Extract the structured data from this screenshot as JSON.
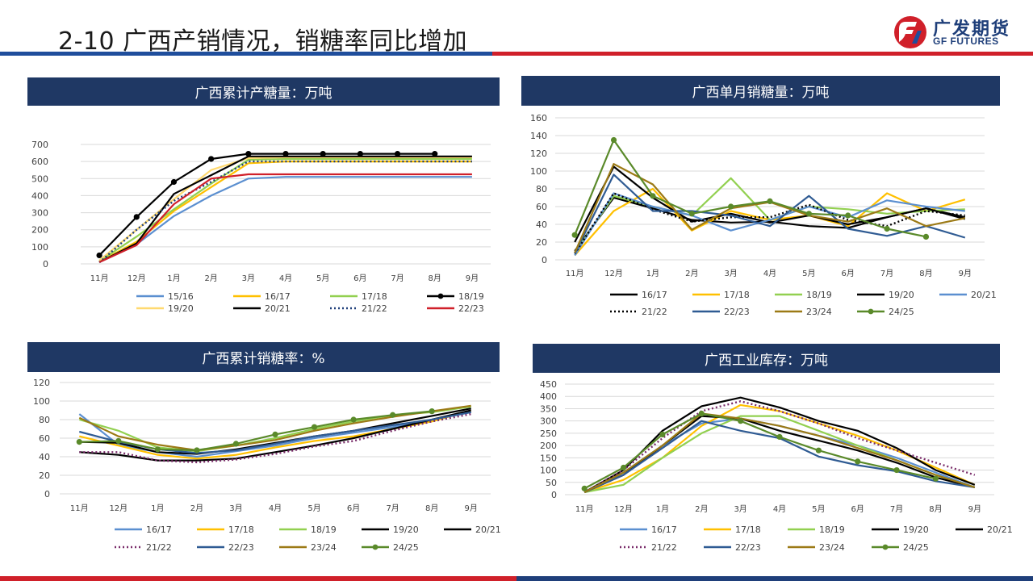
{
  "page": {
    "title": "2-10 广西产销情况，销糖率同比增加",
    "logo_cn": "广发期货",
    "logo_en": "GF FUTURES",
    "colors": {
      "blue": "#1f4e9c",
      "red": "#d0202a",
      "header": "#1f3864"
    }
  },
  "panels": [
    {
      "title": "广西累计产糖量：万吨"
    },
    {
      "title": "广西单月销糖量：万吨"
    },
    {
      "title": "广西累计销糖率：%"
    },
    {
      "title": "广西工业库存：万吨"
    }
  ],
  "chart_data": [
    {
      "type": "line",
      "title": "广西累计产糖量：万吨",
      "categories": [
        "11月",
        "12月",
        "1月",
        "2月",
        "3月",
        "4月",
        "5月",
        "6月",
        "7月",
        "8月",
        "9月"
      ],
      "ylim": [
        0,
        700
      ],
      "yticks": [
        0,
        100,
        200,
        300,
        400,
        500,
        600,
        700
      ],
      "series": [
        {
          "name": "15/16",
          "color": "#5b8fd0",
          "style": "solid",
          "values": [
            10,
            115,
            280,
            400,
            500,
            510,
            510,
            510,
            510,
            510,
            510
          ]
        },
        {
          "name": "16/17",
          "color": "#ffc000",
          "style": "solid",
          "values": [
            12,
            130,
            310,
            450,
            590,
            600,
            600,
            600,
            600,
            600,
            600
          ]
        },
        {
          "name": "17/18",
          "color": "#92d050",
          "style": "solid",
          "values": [
            15,
            160,
            320,
            470,
            610,
            615,
            615,
            615,
            615,
            615,
            615
          ]
        },
        {
          "name": "18/19",
          "color": "#000000",
          "style": "marker",
          "values": [
            50,
            275,
            480,
            615,
            645,
            645,
            645,
            645,
            645,
            645,
            null
          ]
        },
        {
          "name": "19/20",
          "color": "#ffd970",
          "style": "solid",
          "values": [
            20,
            200,
            380,
            550,
            620,
            625,
            625,
            625,
            625,
            625,
            625
          ]
        },
        {
          "name": "20/21",
          "color": "#000000",
          "style": "solid",
          "values": [
            10,
            120,
            410,
            520,
            630,
            630,
            630,
            630,
            630,
            630,
            630
          ]
        },
        {
          "name": "21/22",
          "color": "#1f3f7a",
          "style": "dotted",
          "values": [
            8,
            200,
            370,
            480,
            600,
            600,
            600,
            600,
            600,
            600,
            600
          ]
        },
        {
          "name": "22/23",
          "color": "#d0202a",
          "style": "solid",
          "values": [
            10,
            110,
            350,
            500,
            525,
            525,
            525,
            525,
            525,
            525,
            525
          ]
        }
      ]
    },
    {
      "type": "line",
      "title": "广西单月销糖量：万吨",
      "categories": [
        "11月",
        "12月",
        "1月",
        "2月",
        "3月",
        "4月",
        "5月",
        "6月",
        "7月",
        "8月",
        "9月"
      ],
      "ylim": [
        0,
        160
      ],
      "yticks": [
        0,
        20,
        40,
        60,
        80,
        100,
        120,
        140,
        160
      ],
      "series": [
        {
          "name": "16/17",
          "color": "#000000",
          "style": "solid",
          "values": [
            10,
            70,
            58,
            45,
            42,
            43,
            38,
            36,
            48,
            58,
            48
          ]
        },
        {
          "name": "17/18",
          "color": "#ffc000",
          "style": "solid",
          "values": [
            5,
            55,
            80,
            33,
            55,
            45,
            50,
            38,
            75,
            55,
            68
          ]
        },
        {
          "name": "18/19",
          "color": "#92d050",
          "style": "solid",
          "values": [
            8,
            72,
            60,
            50,
            92,
            45,
            60,
            57,
            52,
            55,
            57
          ]
        },
        {
          "name": "19/20",
          "color": "#000000",
          "style": "solid",
          "values": [
            20,
            105,
            70,
            43,
            52,
            42,
            50,
            40,
            48,
            58,
            46
          ]
        },
        {
          "name": "20/21",
          "color": "#5b8fd0",
          "style": "solid",
          "values": [
            5,
            75,
            60,
            50,
            33,
            45,
            60,
            48,
            67,
            60,
            55
          ]
        },
        {
          "name": "21/22",
          "color": "#000000",
          "style": "dotted",
          "values": [
            7,
            75,
            57,
            43,
            48,
            48,
            62,
            45,
            38,
            55,
            50
          ]
        },
        {
          "name": "22/23",
          "color": "#2f5b93",
          "style": "solid",
          "values": [
            7,
            96,
            55,
            55,
            50,
            38,
            72,
            35,
            27,
            38,
            25
          ]
        },
        {
          "name": "23/24",
          "color": "#9c7a16",
          "style": "solid",
          "values": [
            8,
            108,
            85,
            34,
            58,
            65,
            50,
            43,
            58,
            38,
            47
          ]
        },
        {
          "name": "24/25",
          "color": "#5a8a2a",
          "style": "marker",
          "values": [
            28,
            135,
            72,
            52,
            60,
            66,
            52,
            50,
            35,
            26,
            null
          ]
        }
      ]
    },
    {
      "type": "line",
      "title": "广西累计销糖率：%",
      "categories": [
        "11月",
        "12月",
        "1月",
        "2月",
        "3月",
        "4月",
        "5月",
        "6月",
        "7月",
        "8月",
        "9月"
      ],
      "ylim": [
        0,
        120
      ],
      "yticks": [
        0,
        20,
        40,
        60,
        80,
        100,
        120
      ],
      "series": [
        {
          "name": "16/17",
          "color": "#5b8fd0",
          "style": "solid",
          "values": [
            86,
            53,
            45,
            40,
            46,
            52,
            60,
            66,
            72,
            80,
            88
          ]
        },
        {
          "name": "17/18",
          "color": "#ffc000",
          "style": "solid",
          "values": [
            62,
            52,
            42,
            38,
            42,
            50,
            57,
            62,
            70,
            78,
            90
          ]
        },
        {
          "name": "18/19",
          "color": "#92d050",
          "style": "solid",
          "values": [
            80,
            68,
            50,
            46,
            52,
            60,
            70,
            78,
            85,
            88,
            94
          ]
        },
        {
          "name": "19/20",
          "color": "#000000",
          "style": "solid",
          "values": [
            45,
            42,
            36,
            36,
            38,
            45,
            52,
            60,
            70,
            80,
            90
          ]
        },
        {
          "name": "20/21",
          "color": "#000000",
          "style": "solid",
          "values": [
            56,
            55,
            45,
            43,
            48,
            55,
            62,
            68,
            76,
            84,
            92
          ]
        },
        {
          "name": "21/22",
          "color": "#7a2c6a",
          "style": "dotted",
          "values": [
            45,
            45,
            36,
            34,
            37,
            43,
            51,
            57,
            68,
            78,
            86
          ]
        },
        {
          "name": "22/23",
          "color": "#2f5b93",
          "style": "solid",
          "values": [
            67,
            56,
            48,
            44,
            47,
            54,
            62,
            68,
            74,
            80,
            88
          ]
        },
        {
          "name": "23/24",
          "color": "#9c7a16",
          "style": "solid",
          "values": [
            82,
            62,
            53,
            47,
            52,
            58,
            68,
            76,
            83,
            89,
            95
          ]
        },
        {
          "name": "24/25",
          "color": "#5a8a2a",
          "style": "marker",
          "values": [
            56,
            57,
            48,
            47,
            54,
            64,
            72,
            80,
            85,
            89,
            null
          ]
        }
      ]
    },
    {
      "type": "line",
      "title": "广西工业库存：万吨",
      "categories": [
        "11月",
        "12月",
        "1月",
        "2月",
        "3月",
        "4月",
        "5月",
        "6月",
        "7月",
        "8月",
        "9月"
      ],
      "ylim": [
        0,
        450
      ],
      "yticks": [
        0,
        50,
        100,
        150,
        200,
        250,
        300,
        350,
        400,
        450
      ],
      "series": [
        {
          "name": "16/17",
          "color": "#5b8fd0",
          "style": "solid",
          "values": [
            10,
            90,
            200,
            290,
            310,
            280,
            240,
            200,
            150,
            90,
            30
          ]
        },
        {
          "name": "17/18",
          "color": "#ffc000",
          "style": "solid",
          "values": [
            10,
            60,
            150,
            280,
            365,
            340,
            290,
            240,
            180,
            110,
            40
          ]
        },
        {
          "name": "18/19",
          "color": "#92d050",
          "style": "solid",
          "values": [
            10,
            40,
            150,
            250,
            320,
            320,
            260,
            200,
            140,
            80,
            30
          ]
        },
        {
          "name": "19/20",
          "color": "#000000",
          "style": "solid",
          "values": [
            10,
            100,
            260,
            360,
            395,
            355,
            300,
            260,
            190,
            100,
            40
          ]
        },
        {
          "name": "20/21",
          "color": "#000000",
          "style": "solid",
          "values": [
            10,
            80,
            200,
            320,
            310,
            260,
            220,
            180,
            130,
            70,
            30
          ]
        },
        {
          "name": "21/22",
          "color": "#7a2c6a",
          "style": "dotted",
          "values": [
            10,
            100,
            230,
            340,
            380,
            340,
            290,
            230,
            180,
            130,
            80
          ]
        },
        {
          "name": "22/23",
          "color": "#2f5b93",
          "style": "solid",
          "values": [
            10,
            80,
            190,
            300,
            260,
            230,
            155,
            120,
            95,
            55,
            30
          ]
        },
        {
          "name": "23/24",
          "color": "#9c7a16",
          "style": "solid",
          "values": [
            10,
            90,
            200,
            330,
            310,
            280,
            240,
            190,
            140,
            80,
            30
          ]
        },
        {
          "name": "24/25",
          "color": "#5a8a2a",
          "style": "marker",
          "values": [
            25,
            110,
            245,
            330,
            300,
            235,
            180,
            135,
            100,
            65,
            null
          ]
        }
      ]
    }
  ]
}
